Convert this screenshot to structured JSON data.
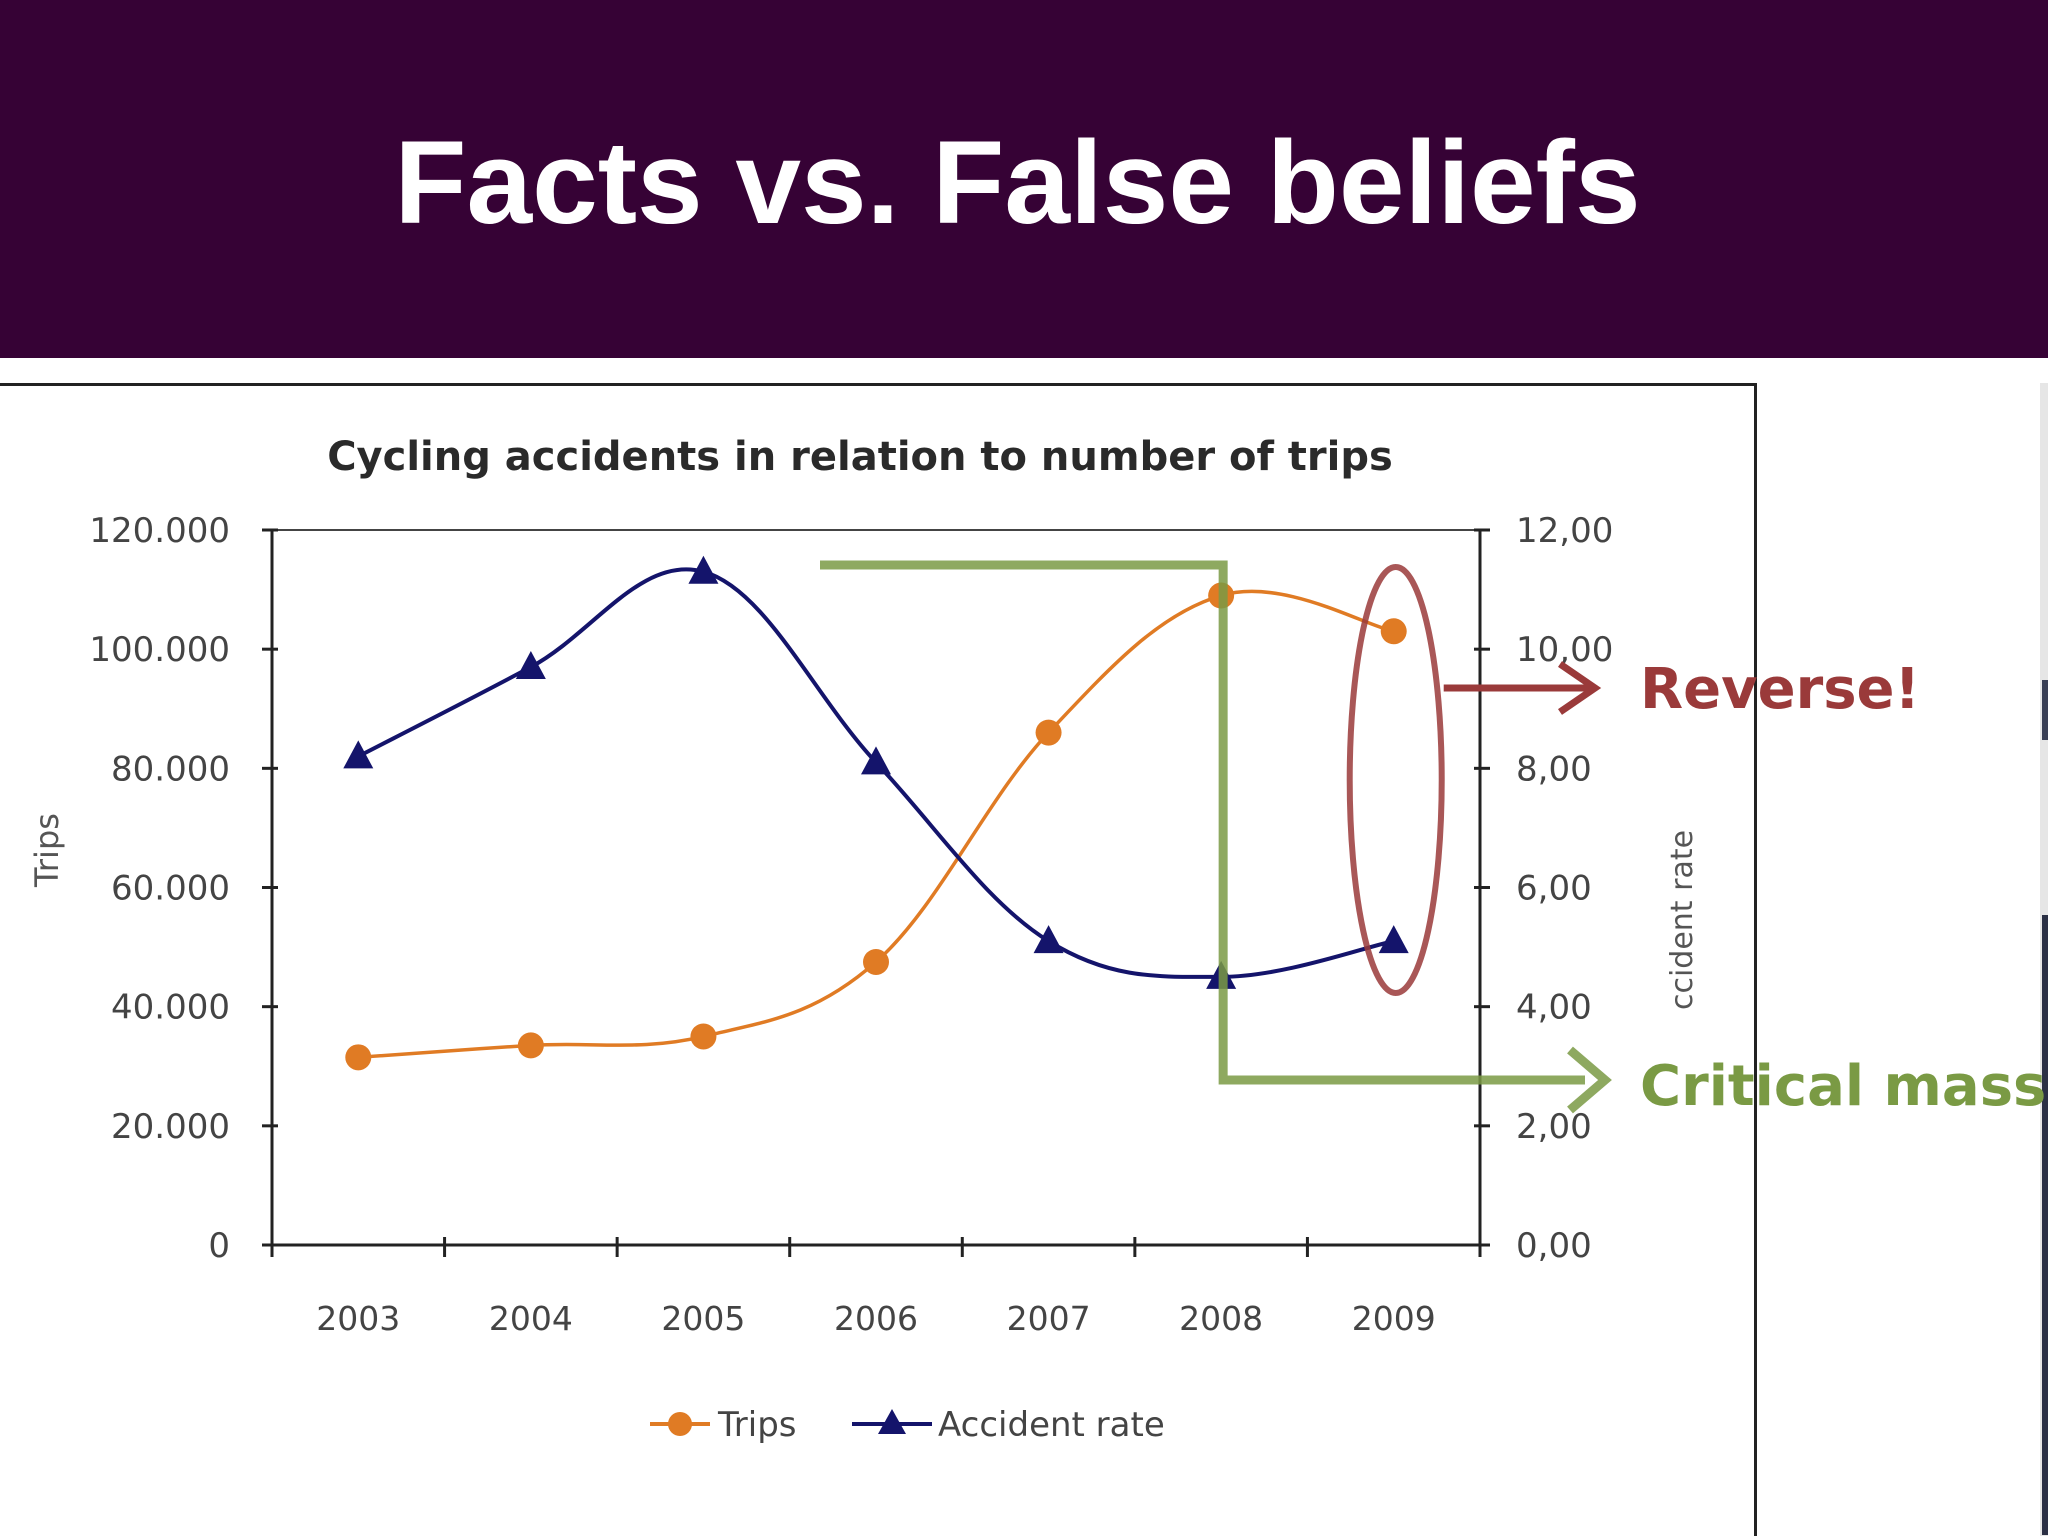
{
  "slide": {
    "title": "Facts vs. False beliefs"
  },
  "chart_data": {
    "type": "line",
    "title": "Cycling accidents in relation to number of trips",
    "x": [
      "2003",
      "2004",
      "2005",
      "2006",
      "2007",
      "2008",
      "2009"
    ],
    "series": [
      {
        "name": "Trips",
        "axis": "left",
        "color": "#e07b24",
        "marker": "circle",
        "values": [
          31500,
          33500,
          35000,
          47500,
          86000,
          109000,
          103000
        ]
      },
      {
        "name": "Accident rate",
        "axis": "right",
        "color": "#14146b",
        "marker": "triangle",
        "values": [
          8.2,
          9.7,
          11.3,
          8.1,
          5.1,
          4.5,
          5.1
        ]
      }
    ],
    "ylabel": "Trips",
    "y2label": "ccident rate",
    "ylim": [
      0,
      120000
    ],
    "y2lim": [
      0,
      12
    ],
    "yticks": [
      "0",
      "20.000",
      "40.000",
      "60.000",
      "80.000",
      "100.000",
      "120.000"
    ],
    "y2ticks": [
      "0,00",
      "2,00",
      "4,00",
      "6,00",
      "8,00",
      "10,00",
      "12,00"
    ],
    "legend_position": "bottom",
    "annotations": {
      "reverse": {
        "text": "Reverse!",
        "color": "#9a3a3a"
      },
      "critical_mass": {
        "text": "Critical mass",
        "color": "#7a9a44"
      }
    }
  }
}
